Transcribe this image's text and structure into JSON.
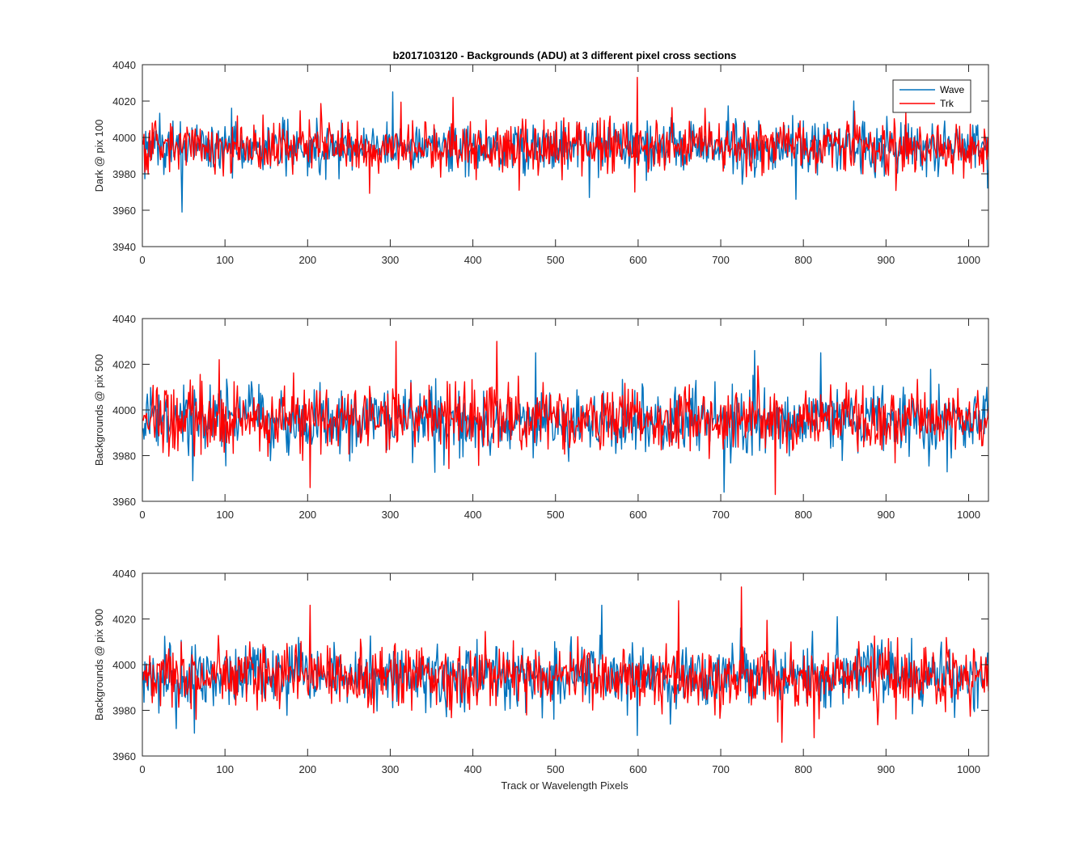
{
  "figure": {
    "title": "b2017103120 - Backgrounds (ADU) at 3 different pixel cross sections",
    "xlabel": "Track or Wavelength Pixels",
    "legend": {
      "placement": "top-right",
      "entries": [
        "Wave",
        "Trk"
      ]
    },
    "colors": {
      "Wave": "#0072bd",
      "Trk": "#ff0000",
      "axes": "#262626",
      "background": "#ffffff"
    }
  },
  "chart_data": [
    {
      "type": "line",
      "ylabel": "Dark @ pix 100",
      "xlim": [
        0,
        1024
      ],
      "ylim": [
        3940,
        4040
      ],
      "xticks": [
        0,
        100,
        200,
        300,
        400,
        500,
        600,
        700,
        800,
        900,
        1000
      ],
      "yticks": [
        3940,
        3960,
        3980,
        4000,
        4020,
        4040
      ],
      "legend": true,
      "n_points": 1024,
      "series": [
        {
          "name": "Wave",
          "color": "#0072bd",
          "mean": 3995,
          "std": 7,
          "spikes": [
            [
              47,
              3959
            ],
            [
              302,
              4025
            ],
            [
              540,
              3967
            ],
            [
              790,
              3966
            ],
            [
              860,
              4020
            ]
          ]
        },
        {
          "name": "Trk",
          "color": "#ff0000",
          "mean": 3995,
          "std": 7,
          "spikes": [
            [
              598,
              4033
            ],
            [
              375,
              4022
            ],
            [
              680,
              4016
            ],
            [
              455,
              3971
            ],
            [
              595,
              3970
            ]
          ]
        }
      ]
    },
    {
      "type": "line",
      "ylabel": "Backgrounds @ pix 500",
      "xlim": [
        0,
        1024
      ],
      "ylim": [
        3960,
        4040
      ],
      "xticks": [
        0,
        100,
        200,
        300,
        400,
        500,
        600,
        700,
        800,
        900,
        1000
      ],
      "yticks": [
        3960,
        3980,
        4000,
        4020,
        4040
      ],
      "legend": false,
      "n_points": 1024,
      "series": [
        {
          "name": "Wave",
          "color": "#0072bd",
          "mean": 3995,
          "std": 7,
          "spikes": [
            [
              703,
              3964
            ],
            [
              740,
              4026
            ],
            [
              820,
              4025
            ],
            [
              475,
              4025
            ],
            [
              60,
              3969
            ]
          ]
        },
        {
          "name": "Trk",
          "color": "#ff0000",
          "mean": 3996,
          "std": 7,
          "spikes": [
            [
              306,
              4030
            ],
            [
              428,
              4030
            ],
            [
              202,
              3966
            ],
            [
              765,
              3963
            ],
            [
              92,
              4022
            ]
          ]
        }
      ]
    },
    {
      "type": "line",
      "ylabel": "Backgrounds @ pix 900",
      "xlim": [
        0,
        1024
      ],
      "ylim": [
        3960,
        4040
      ],
      "xticks": [
        0,
        100,
        200,
        300,
        400,
        500,
        600,
        700,
        800,
        900,
        1000
      ],
      "yticks": [
        3960,
        3980,
        4000,
        4020,
        4040
      ],
      "legend": false,
      "n_points": 1024,
      "series": [
        {
          "name": "Wave",
          "color": "#0072bd",
          "mean": 3995,
          "std": 7,
          "spikes": [
            [
              555,
              4026
            ],
            [
              598,
              3969
            ],
            [
              40,
              3972
            ],
            [
              62,
              3970
            ],
            [
              840,
              4021
            ]
          ]
        },
        {
          "name": "Trk",
          "color": "#ff0000",
          "mean": 3995,
          "std": 7,
          "spikes": [
            [
              724,
              4034
            ],
            [
              648,
              4028
            ],
            [
              202,
              4026
            ],
            [
              773,
              3966
            ],
            [
              812,
              3968
            ]
          ]
        }
      ]
    }
  ]
}
